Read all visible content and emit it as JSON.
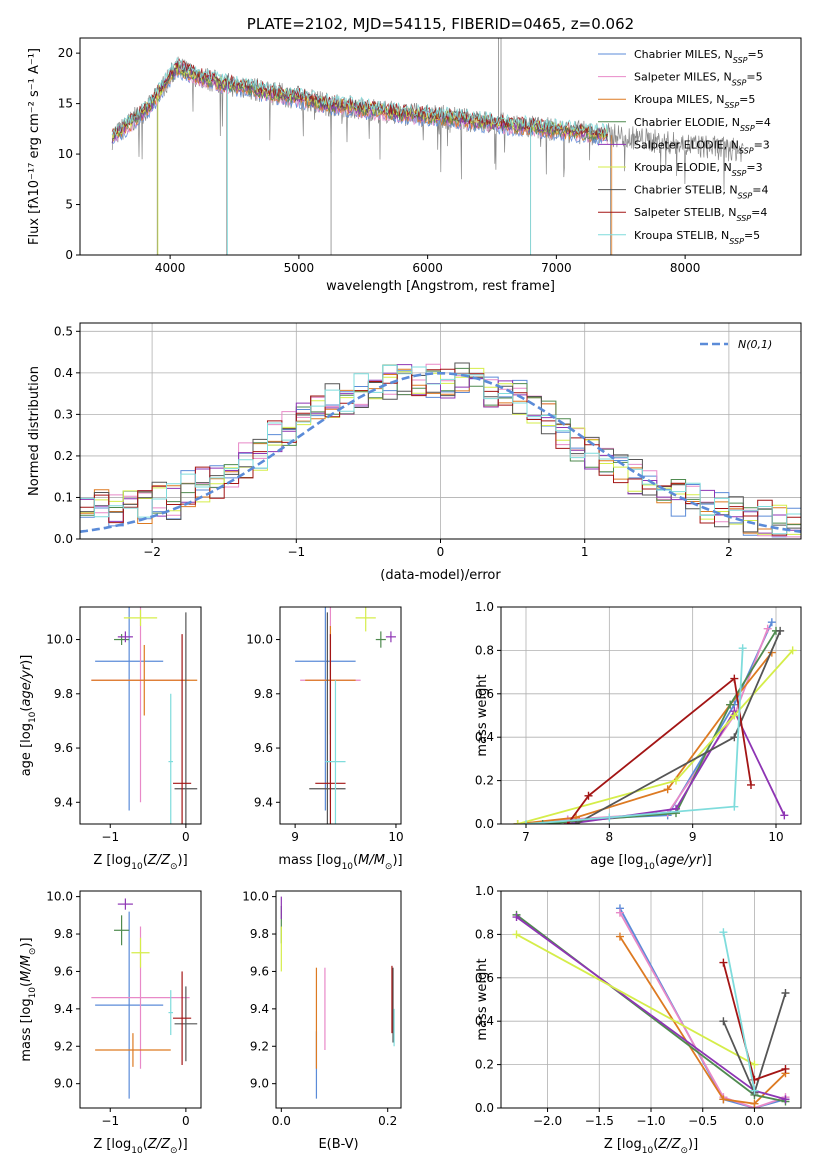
{
  "colors": {
    "Chabrier MILES": "#5b8bd8",
    "Salpeter MILES": "#e889c8",
    "Kroupa MILES": "#dd7a22",
    "Chabrier ELODIE": "#4f8a4f",
    "Salpeter ELODIE": "#8e35b4",
    "Kroupa ELODIE": "#d5ed4a",
    "Chabrier STELIB": "#555555",
    "Salpeter STELIB": "#a31515",
    "Kroupa STELIB": "#7fdcdc",
    "data": "#888888",
    "gauss": "#5b8bd8"
  },
  "chart_data": [
    {
      "id": "spectrum",
      "type": "line",
      "title": "PLATE=2102, MJD=54115, FIBERID=0465, z=0.062",
      "xlabel": "wavelength [Angstrom, rest frame]",
      "ylabel": "Flux [fλ10⁻¹⁷ erg cm⁻² s⁻¹ A⁻¹]",
      "xlim": [
        3300,
        8900
      ],
      "ylim": [
        0,
        21.5
      ],
      "xticks": [
        4000,
        5000,
        6000,
        7000,
        8000
      ],
      "yticks": [
        0,
        5,
        10,
        15,
        20
      ],
      "grid": false,
      "legend_position": "top-right",
      "legend": [
        {
          "model": "Chabrier MILES",
          "n": "5"
        },
        {
          "model": "Salpeter MILES",
          "n": "5"
        },
        {
          "model": "Kroupa MILES",
          "n": "5"
        },
        {
          "model": "Chabrier ELODIE",
          "n": "4"
        },
        {
          "model": "Salpeter ELODIE",
          "n": "3"
        },
        {
          "model": "Kroupa ELODIE",
          "n": "3"
        },
        {
          "model": "Chabrier STELIB",
          "n": "4"
        },
        {
          "model": "Salpeter STELIB",
          "n": "4"
        },
        {
          "model": "Kroupa STELIB",
          "n": "5"
        }
      ],
      "legend_prefix": "N",
      "legend_subscript": "SSP",
      "continuum": {
        "x": [
          3550,
          3700,
          3850,
          3950,
          4050,
          4200,
          4400,
          4600,
          4800,
          5000,
          5200,
          5500,
          5800,
          6100,
          6400,
          6700,
          7000,
          7300,
          7500,
          7800,
          8100,
          8400
        ],
        "y": [
          11.6,
          13.2,
          14.8,
          16.8,
          18.6,
          17.8,
          17.0,
          16.6,
          16.0,
          15.6,
          15.0,
          14.5,
          14.0,
          13.7,
          13.2,
          12.8,
          12.4,
          12.0,
          11.8,
          11.2,
          10.8,
          10.4
        ]
      },
      "model_range": [
        3550,
        7400
      ],
      "data_range": [
        3550,
        8450
      ],
      "spikes_down": [
        {
          "x": 3900,
          "y": 0
        },
        {
          "x": 4440,
          "y": 0
        },
        {
          "x": 5250,
          "y": 0
        },
        {
          "x": 6800,
          "y": 0
        },
        {
          "x": 7420,
          "y": 0
        }
      ],
      "spikes_up": [
        {
          "x": 6550,
          "y": 21.5
        },
        {
          "x": 6570,
          "y": 21.5
        }
      ]
    },
    {
      "id": "residuals",
      "type": "step",
      "xlabel": "(data-model)/error",
      "ylabel": "Normed distribution",
      "xlim": [
        -2.5,
        2.5
      ],
      "ylim": [
        0,
        0.52
      ],
      "xticks": [
        -2,
        -1,
        0,
        1,
        2
      ],
      "yticks": [
        0.0,
        0.1,
        0.2,
        0.3,
        0.4,
        0.5
      ],
      "grid": true,
      "legend_position": "top-right",
      "legend_label": "N(0,1)",
      "bin_width": 0.1,
      "base_hist": [
        0.06,
        0.08,
        0.07,
        0.09,
        0.08,
        0.1,
        0.09,
        0.12,
        0.13,
        0.14,
        0.17,
        0.19,
        0.21,
        0.24,
        0.27,
        0.29,
        0.3,
        0.33,
        0.34,
        0.36,
        0.37,
        0.38,
        0.39,
        0.39,
        0.38,
        0.37,
        0.38,
        0.38,
        0.36,
        0.35,
        0.34,
        0.31,
        0.29,
        0.26,
        0.23,
        0.21,
        0.19,
        0.17,
        0.15,
        0.13,
        0.11,
        0.1,
        0.09,
        0.08,
        0.07,
        0.06,
        0.05,
        0.05,
        0.04,
        0.04
      ]
    },
    {
      "id": "age-vs-Z",
      "type": "scatter",
      "xlabel": "Z [log10(Z/Z⊙)]",
      "ylabel": "age  [log10(age/yr)]",
      "xlim": [
        -1.4,
        0.2
      ],
      "ylim": [
        9.32,
        10.12
      ],
      "xticks": [
        -1,
        0
      ],
      "yticks": [
        9.4,
        9.6,
        9.8,
        10.0
      ],
      "grid": false,
      "points": [
        {
          "series": "Chabrier MILES",
          "x": -0.75,
          "y": 9.92,
          "xerr": 0.45,
          "yerr": 0.55
        },
        {
          "series": "Salpeter MILES",
          "x": -0.6,
          "y": 9.85,
          "xerr": 0.65,
          "yerr": 0.45
        },
        {
          "series": "Kroupa MILES",
          "x": -0.55,
          "y": 9.85,
          "xerr": 0.7,
          "yerr": 0.13
        },
        {
          "series": "Chabrier ELODIE",
          "x": -0.85,
          "y": 10.0,
          "xerr": 0.1,
          "yerr": 0.02
        },
        {
          "series": "Salpeter ELODIE",
          "x": -0.8,
          "y": 10.01,
          "xerr": 0.1,
          "yerr": 0.02
        },
        {
          "series": "Kroupa ELODIE",
          "x": -0.6,
          "y": 10.08,
          "xerr": 0.22,
          "yerr": 0.03
        },
        {
          "series": "Chabrier STELIB",
          "x": 0.0,
          "y": 9.45,
          "xerr": 0.15,
          "yerr": 0.65
        },
        {
          "series": "Salpeter STELIB",
          "x": -0.05,
          "y": 9.47,
          "xerr": 0.12,
          "yerr": 0.55
        },
        {
          "series": "Kroupa STELIB",
          "x": -0.2,
          "y": 9.55,
          "xerr": 0.03,
          "yerr": 0.25
        }
      ]
    },
    {
      "id": "age-vs-mass",
      "type": "scatter",
      "xlabel": "mass [log10(M/M⊙)]",
      "ylabel": "",
      "xlim": [
        8.85,
        10.05
      ],
      "ylim": [
        9.32,
        10.12
      ],
      "xticks": [
        9,
        10
      ],
      "yticks": [
        9.4,
        9.6,
        9.8,
        10.0
      ],
      "grid": false,
      "points": [
        {
          "series": "Chabrier MILES",
          "x": 9.3,
          "y": 9.92,
          "xerr": 0.3,
          "yerr": 0.55
        },
        {
          "series": "Salpeter MILES",
          "x": 9.35,
          "y": 9.85,
          "xerr": 0.3,
          "yerr": 0.45
        },
        {
          "series": "Kroupa MILES",
          "x": 9.35,
          "y": 9.85,
          "xerr": 0.25,
          "yerr": 0.2
        },
        {
          "series": "Chabrier ELODIE",
          "x": 9.85,
          "y": 10.0,
          "xerr": 0.05,
          "yerr": 0.03
        },
        {
          "series": "Salpeter ELODIE",
          "x": 9.95,
          "y": 10.01,
          "xerr": 0.05,
          "yerr": 0.02
        },
        {
          "series": "Kroupa ELODIE",
          "x": 9.7,
          "y": 10.08,
          "xerr": 0.1,
          "yerr": 0.05
        },
        {
          "series": "Chabrier STELIB",
          "x": 9.32,
          "y": 9.45,
          "xerr": 0.18,
          "yerr": 0.65
        },
        {
          "series": "Salpeter STELIB",
          "x": 9.35,
          "y": 9.47,
          "xerr": 0.15,
          "yerr": 0.55
        },
        {
          "series": "Kroupa STELIB",
          "x": 9.4,
          "y": 9.55,
          "xerr": 0.1,
          "yerr": 0.3
        }
      ]
    },
    {
      "id": "massweight-vs-age",
      "type": "line",
      "xlabel": "age  [log10(age/yr)]",
      "ylabel": "mass weight",
      "xlim": [
        6.7,
        10.3
      ],
      "ylim": [
        0,
        1.0
      ],
      "xticks": [
        7,
        8,
        9,
        10
      ],
      "yticks": [
        0.0,
        0.2,
        0.4,
        0.6,
        0.8,
        1.0
      ],
      "grid": true,
      "series": [
        {
          "name": "Chabrier MILES",
          "x": [
            6.9,
            7.5,
            8.7,
            9.5,
            9.95
          ],
          "y": [
            0.0,
            0.02,
            0.04,
            0.55,
            0.93
          ]
        },
        {
          "name": "Salpeter MILES",
          "x": [
            6.9,
            7.5,
            8.7,
            9.5,
            9.9
          ],
          "y": [
            0.0,
            0.02,
            0.05,
            0.5,
            0.9
          ]
        },
        {
          "name": "Kroupa MILES",
          "x": [
            6.9,
            7.6,
            8.7,
            9.45,
            9.95
          ],
          "y": [
            0.0,
            0.03,
            0.16,
            0.55,
            0.79
          ]
        },
        {
          "name": "Chabrier ELODIE",
          "x": [
            7.2,
            8.8,
            9.45,
            10.0
          ],
          "y": [
            0.0,
            0.05,
            0.55,
            0.89
          ]
        },
        {
          "name": "Salpeter ELODIE",
          "x": [
            7.5,
            8.8,
            9.5,
            10.1
          ],
          "y": [
            0.0,
            0.07,
            0.52,
            0.04
          ]
        },
        {
          "name": "Kroupa ELODIE",
          "x": [
            6.9,
            8.8,
            9.5,
            10.2
          ],
          "y": [
            0.0,
            0.2,
            0.5,
            0.8
          ]
        },
        {
          "name": "Chabrier STELIB",
          "x": [
            7.6,
            9.5,
            10.05
          ],
          "y": [
            0.0,
            0.4,
            0.89
          ]
        },
        {
          "name": "Salpeter STELIB",
          "x": [
            7.5,
            7.75,
            9.5,
            9.7
          ],
          "y": [
            0.0,
            0.13,
            0.67,
            0.18
          ]
        },
        {
          "name": "Kroupa STELIB",
          "x": [
            7.0,
            8.0,
            9.5,
            9.6
          ],
          "y": [
            0.0,
            0.03,
            0.08,
            0.81
          ]
        }
      ]
    },
    {
      "id": "mass-vs-Z",
      "type": "scatter",
      "xlabel": "Z [log10(Z/Z⊙)]",
      "ylabel": "mass [log10(M/M⊙)]",
      "xlim": [
        -1.4,
        0.2
      ],
      "ylim": [
        8.87,
        10.03
      ],
      "xticks": [
        -1,
        0
      ],
      "yticks": [
        9.0,
        9.2,
        9.4,
        9.6,
        9.8,
        10.0
      ],
      "grid": false,
      "points": [
        {
          "series": "Chabrier MILES",
          "x": -0.75,
          "y": 9.42,
          "xerr": 0.45,
          "yerr": 0.5
        },
        {
          "series": "Salpeter MILES",
          "x": -0.6,
          "y": 9.46,
          "xerr": 0.65,
          "yerr": 0.38
        },
        {
          "series": "Kroupa MILES",
          "x": -0.7,
          "y": 9.18,
          "xerr": 0.5,
          "yerr": 0.09
        },
        {
          "series": "Chabrier ELODIE",
          "x": -0.85,
          "y": 9.82,
          "xerr": 0.1,
          "yerr": 0.08
        },
        {
          "series": "Salpeter ELODIE",
          "x": -0.8,
          "y": 9.96,
          "xerr": 0.1,
          "yerr": 0.03
        },
        {
          "series": "Kroupa ELODIE",
          "x": -0.6,
          "y": 9.7,
          "xerr": 0.12,
          "yerr": 0.08
        },
        {
          "series": "Chabrier STELIB",
          "x": 0.0,
          "y": 9.32,
          "xerr": 0.15,
          "yerr": 0.2
        },
        {
          "series": "Salpeter STELIB",
          "x": -0.05,
          "y": 9.35,
          "xerr": 0.12,
          "yerr": 0.25
        },
        {
          "series": "Kroupa STELIB",
          "x": -0.2,
          "y": 9.38,
          "xerr": 0.03,
          "yerr": 0.12
        }
      ]
    },
    {
      "id": "mass-vs-EBV",
      "type": "scatter",
      "xlabel": "E(B-V)",
      "ylabel": "",
      "xlim": [
        -0.01,
        0.225
      ],
      "ylim": [
        8.87,
        10.03
      ],
      "xticks": [
        0.0,
        0.2
      ],
      "yticks": [
        9.0,
        9.2,
        9.4,
        9.6,
        9.8,
        10.0
      ],
      "grid": false,
      "points": [
        {
          "series": "Chabrier MILES",
          "x": 0.066,
          "y": 9.1,
          "xerr": 0,
          "yerr": 0.18
        },
        {
          "series": "Salpeter MILES",
          "x": 0.082,
          "y": 9.4,
          "xerr": 0,
          "yerr": 0.22
        },
        {
          "series": "Kroupa MILES",
          "x": 0.066,
          "y": 9.35,
          "xerr": 0,
          "yerr": 0.27
        },
        {
          "series": "Chabrier ELODIE",
          "x": 0.0,
          "y": 9.85,
          "xerr": 0,
          "yerr": 0.1
        },
        {
          "series": "Salpeter ELODIE",
          "x": 0.0,
          "y": 9.94,
          "xerr": 0,
          "yerr": 0.06
        },
        {
          "series": "Kroupa ELODIE",
          "x": 0.0,
          "y": 9.72,
          "xerr": 0,
          "yerr": 0.12
        },
        {
          "series": "Chabrier STELIB",
          "x": 0.21,
          "y": 9.42,
          "xerr": 0,
          "yerr": 0.2
        },
        {
          "series": "Salpeter STELIB",
          "x": 0.208,
          "y": 9.45,
          "xerr": 0,
          "yerr": 0.18
        },
        {
          "series": "Kroupa STELIB",
          "x": 0.212,
          "y": 9.3,
          "xerr": 0,
          "yerr": 0.1
        }
      ]
    },
    {
      "id": "massweight-vs-Z",
      "type": "line",
      "xlabel": "Z [log10(Z/Z⊙)]",
      "ylabel": "mass weight",
      "xlim": [
        -2.45,
        0.45
      ],
      "ylim": [
        0,
        1.0
      ],
      "xticks": [
        -2.0,
        -1.5,
        -1.0,
        -0.5,
        0.0
      ],
      "yticks": [
        0.0,
        0.2,
        0.4,
        0.6,
        0.8,
        1.0
      ],
      "grid": true,
      "series": [
        {
          "name": "Chabrier MILES",
          "x": [
            -1.3,
            -0.3,
            0.0,
            0.3
          ],
          "y": [
            0.92,
            0.04,
            0.0,
            0.04
          ]
        },
        {
          "name": "Salpeter MILES",
          "x": [
            -1.3,
            -0.3,
            0.0,
            0.3
          ],
          "y": [
            0.9,
            0.05,
            0.0,
            0.05
          ]
        },
        {
          "name": "Kroupa MILES",
          "x": [
            -1.3,
            -0.3,
            0.0,
            0.3
          ],
          "y": [
            0.79,
            0.04,
            0.02,
            0.16
          ]
        },
        {
          "name": "Chabrier ELODIE",
          "x": [
            -2.3,
            0.0,
            0.3
          ],
          "y": [
            0.89,
            0.06,
            0.03
          ]
        },
        {
          "name": "Salpeter ELODIE",
          "x": [
            -2.3,
            0.0,
            0.3
          ],
          "y": [
            0.88,
            0.08,
            0.04
          ]
        },
        {
          "name": "Kroupa ELODIE",
          "x": [
            -2.3,
            0.0
          ],
          "y": [
            0.8,
            0.2
          ]
        },
        {
          "name": "Chabrier STELIB",
          "x": [
            -0.3,
            0.0,
            0.3
          ],
          "y": [
            0.4,
            0.07,
            0.53
          ]
        },
        {
          "name": "Salpeter STELIB",
          "x": [
            -0.3,
            0.0,
            0.3
          ],
          "y": [
            0.67,
            0.13,
            0.18
          ]
        },
        {
          "name": "Kroupa STELIB",
          "x": [
            -0.3,
            0.0
          ],
          "y": [
            0.81,
            0.08
          ]
        }
      ]
    }
  ]
}
